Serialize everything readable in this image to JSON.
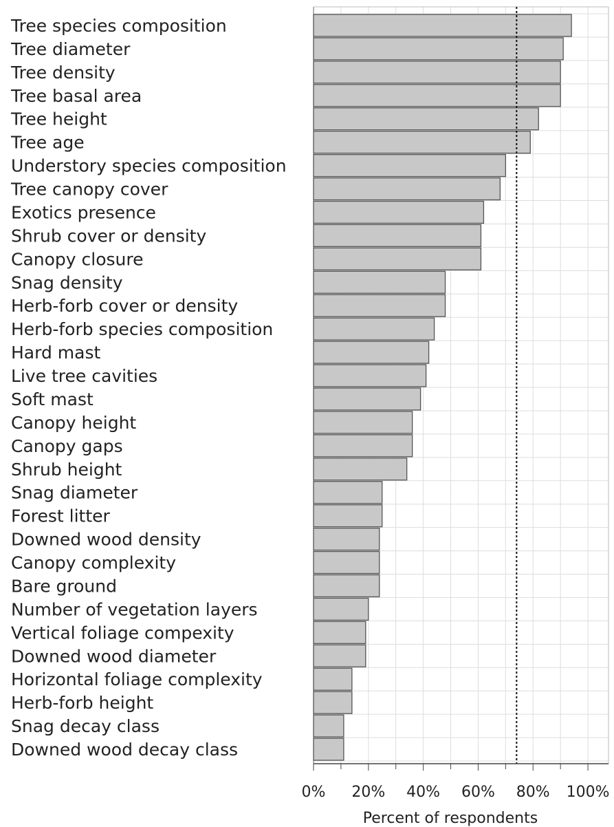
{
  "chart_data": {
    "type": "barh",
    "x_label": "Percent of respondents",
    "categories": [
      "Tree species composition",
      "Tree diameter",
      "Tree density",
      "Tree basal area",
      "Tree height",
      "Tree age",
      "Understory species composition",
      "Tree canopy cover",
      "Exotics presence",
      "Shrub cover or density",
      "Canopy closure",
      "Snag density",
      "Herb-forb cover or density",
      "Herb-forb species composition",
      "Hard mast",
      "Live tree cavities",
      "Soft mast",
      "Canopy height",
      "Canopy gaps",
      "Shrub height",
      "Snag diameter",
      "Forest litter",
      "Downed wood density",
      "Canopy complexity",
      "Bare ground",
      "Number of vegetation layers",
      "Vertical foliage compexity",
      "Downed wood diameter",
      "Horizontal foliage complexity",
      "Herb-forb height",
      "Snag decay class",
      "Downed wood decay class"
    ],
    "values": [
      94,
      91,
      90,
      90,
      82,
      79,
      70,
      68,
      62,
      61,
      61,
      48,
      48,
      44,
      42,
      41,
      39,
      36,
      36,
      34,
      25,
      25,
      24,
      24,
      24,
      20,
      19,
      19,
      14,
      14,
      11,
      11
    ],
    "color": "#c8c8c8",
    "xlim": [
      0,
      107.5
    ],
    "xticks": [
      {
        "value": 0,
        "label": "0%"
      },
      {
        "value": 20,
        "label": "20%"
      },
      {
        "value": 40,
        "label": "40%"
      },
      {
        "value": 60,
        "label": "60%"
      },
      {
        "value": 80,
        "label": "80%"
      },
      {
        "value": 100,
        "label": "100%"
      }
    ],
    "xminor": [
      10,
      30,
      50,
      70,
      90
    ],
    "reference_line": 74,
    "grid": true
  }
}
